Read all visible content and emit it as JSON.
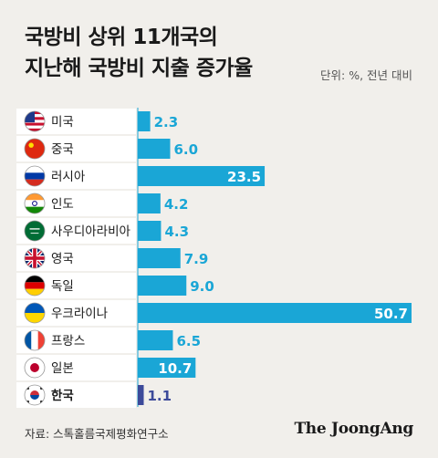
{
  "title_line1": "국방비 상위 11개국의",
  "title_line2": "지난해 국방비 지출 증가율",
  "unit": "단위: %, 전년 대비",
  "source": "자료: 스톡홀름국제평화연구소",
  "brand": "The JoongAng",
  "colors": {
    "bar": "#1aa6d6",
    "highlight": "#3c4a9a",
    "label": "#1aa6d6"
  },
  "chart_data": {
    "type": "bar",
    "orientation": "horizontal",
    "categories": [
      "미국",
      "중국",
      "러시아",
      "인도",
      "사우디아라비아",
      "영국",
      "독일",
      "우크라이나",
      "프랑스",
      "일본",
      "한국"
    ],
    "flags": [
      "usa",
      "china",
      "russia",
      "india",
      "saudi",
      "uk",
      "germany",
      "ukraine",
      "france",
      "japan",
      "korea"
    ],
    "values": [
      2.3,
      6.0,
      23.5,
      4.2,
      4.3,
      7.9,
      9.0,
      50.7,
      6.5,
      10.7,
      1.1
    ],
    "labels": [
      "2.3",
      "6.0",
      "23.5",
      "4.2",
      "4.3",
      "7.9",
      "9.0",
      "50.7",
      "6.5",
      "10.7",
      "1.1"
    ],
    "highlight": "한국",
    "xlim": [
      0,
      50.7
    ]
  }
}
